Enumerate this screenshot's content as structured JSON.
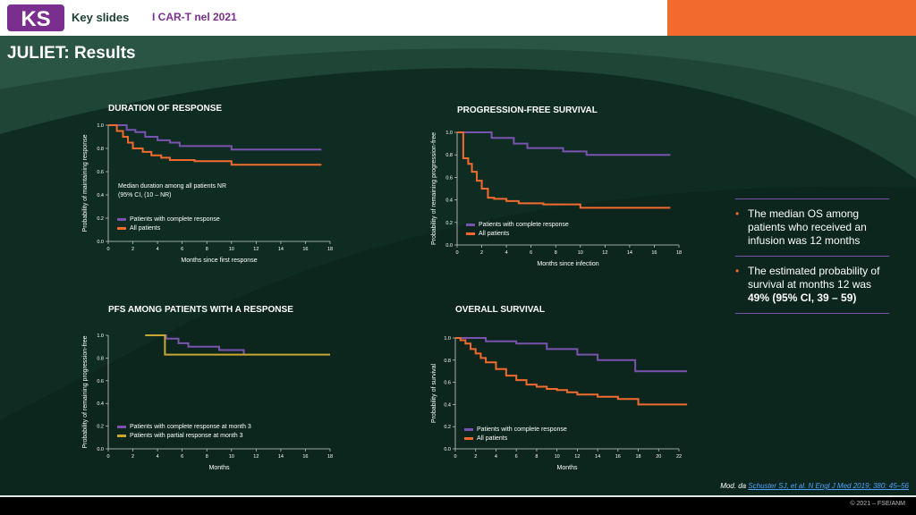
{
  "header": {
    "brand": "KS",
    "key_slides": "Key slides",
    "subtitle": "I CAR-T nel 2021"
  },
  "title": "JULIET: Results",
  "colors": {
    "purple": "#7a52b0",
    "orange": "#f26a2e",
    "gold": "#c8a832",
    "background": "#0f2c22"
  },
  "chart_data": [
    {
      "type": "line",
      "title": "DURATION OF RESPONSE",
      "xlabel": "Months since first response",
      "ylabel": "Probability of maintaining response",
      "xlim": [
        0,
        18
      ],
      "ylim": [
        0,
        1.0
      ],
      "xticks": [
        0,
        2,
        4,
        6,
        8,
        10,
        12,
        14,
        16,
        18
      ],
      "yticks": [
        0,
        0.2,
        0.4,
        0.6,
        0.8,
        1.0
      ],
      "annotation": "Median duration among all patients NR (95% CI, (10 – NR)",
      "series": [
        {
          "name": "Patients with complete response",
          "color": "purple",
          "x": [
            0,
            1.5,
            2.2,
            3.0,
            4.0,
            5.0,
            5.8,
            10.0,
            17.3
          ],
          "y": [
            1.0,
            0.96,
            0.94,
            0.9,
            0.87,
            0.85,
            0.82,
            0.79,
            0.79
          ]
        },
        {
          "name": "All patients",
          "color": "orange",
          "x": [
            0,
            0.7,
            1.2,
            1.6,
            2.0,
            2.8,
            3.5,
            4.3,
            5.0,
            7.0,
            10.0,
            17.3
          ],
          "y": [
            1.0,
            0.95,
            0.9,
            0.85,
            0.8,
            0.77,
            0.74,
            0.72,
            0.7,
            0.69,
            0.66,
            0.66
          ]
        }
      ]
    },
    {
      "type": "line",
      "title": "PROGRESSION-FREE SURVIVAL",
      "xlabel": "Months since infection",
      "ylabel": "Probability of remaining progression-free",
      "xlim": [
        0,
        18
      ],
      "ylim": [
        0,
        1.0
      ],
      "xticks": [
        0,
        2,
        4,
        6,
        8,
        10,
        12,
        14,
        16,
        18
      ],
      "yticks": [
        0,
        0.2,
        0.4,
        0.6,
        0.8,
        1.0
      ],
      "series": [
        {
          "name": "Patients with complete response",
          "color": "purple",
          "x": [
            0,
            2.8,
            4.6,
            5.7,
            8.6,
            10.5,
            17.3
          ],
          "y": [
            1.0,
            0.95,
            0.9,
            0.86,
            0.83,
            0.8,
            0.8
          ]
        },
        {
          "name": "All patients",
          "color": "orange",
          "x": [
            0,
            0.5,
            0.9,
            1.2,
            1.6,
            2.0,
            2.5,
            3.0,
            4.0,
            5.0,
            7.0,
            10.0,
            17.3
          ],
          "y": [
            1.0,
            0.77,
            0.72,
            0.65,
            0.57,
            0.5,
            0.42,
            0.41,
            0.39,
            0.37,
            0.36,
            0.33,
            0.33
          ]
        }
      ]
    },
    {
      "type": "line",
      "title": "PFS AMONG PATIENTS WITH A RESPONSE",
      "xlabel": "Months",
      "ylabel": "Probability of remaining progression-free",
      "xlim": [
        0,
        18
      ],
      "ylim": [
        0,
        1.0
      ],
      "xticks": [
        0,
        2,
        4,
        6,
        8,
        10,
        12,
        14,
        16,
        18
      ],
      "yticks": [
        0,
        0.2,
        0.4,
        0.6,
        0.8,
        1.0
      ],
      "series": [
        {
          "name": "Patients with complete response at month 3",
          "color": "purple",
          "x": [
            3.0,
            4.7,
            5.7,
            6.5,
            9.0,
            11.0
          ],
          "y": [
            1.0,
            0.97,
            0.93,
            0.9,
            0.87,
            0.83
          ]
        },
        {
          "name": "Patients with partial response at month 3",
          "color": "gold",
          "x": [
            3.0,
            4.5,
            4.6,
            18.0
          ],
          "y": [
            1.0,
            1.0,
            0.83,
            0.83
          ]
        }
      ]
    },
    {
      "type": "line",
      "title": "OVERALL SURVIVAL",
      "xlabel": "Months",
      "ylabel": "Probability of survival",
      "xlim": [
        0,
        22
      ],
      "ylim": [
        0,
        1.0
      ],
      "xticks": [
        0,
        2,
        4,
        6,
        8,
        10,
        12,
        14,
        16,
        18,
        20,
        22
      ],
      "yticks": [
        0,
        0.2,
        0.4,
        0.6,
        0.8,
        1.0
      ],
      "series": [
        {
          "name": "Patients with complete response",
          "color": "purple",
          "x": [
            0,
            3.0,
            6.0,
            9.0,
            12.0,
            14.0,
            17.7,
            22.8
          ],
          "y": [
            1.0,
            0.97,
            0.95,
            0.9,
            0.85,
            0.8,
            0.7,
            0.7
          ]
        },
        {
          "name": "All patients",
          "color": "orange",
          "x": [
            0,
            0.5,
            1.0,
            1.5,
            2.0,
            2.5,
            3.0,
            4.0,
            5.0,
            6.0,
            7.0,
            8.0,
            9.0,
            10.0,
            11.0,
            12.0,
            14.0,
            16.0,
            18.0,
            22.8
          ],
          "y": [
            1.0,
            0.98,
            0.95,
            0.9,
            0.86,
            0.82,
            0.78,
            0.72,
            0.66,
            0.62,
            0.58,
            0.56,
            0.54,
            0.53,
            0.51,
            0.49,
            0.47,
            0.45,
            0.4,
            0.4
          ]
        }
      ]
    }
  ],
  "bullets": [
    {
      "text": "The median OS among patients who received an infusion was 12 months",
      "bold": ""
    },
    {
      "text": "The estimated probability of survival at months 12 was ",
      "bold": "49% (95% CI, 39 – 59)"
    }
  ],
  "source": {
    "prefix": "Mod. da ",
    "link": "Schuster SJ, et al. N Engl J Med 2019; 380: 45–56"
  },
  "copyright": "© 2021 – FSE/ANM"
}
